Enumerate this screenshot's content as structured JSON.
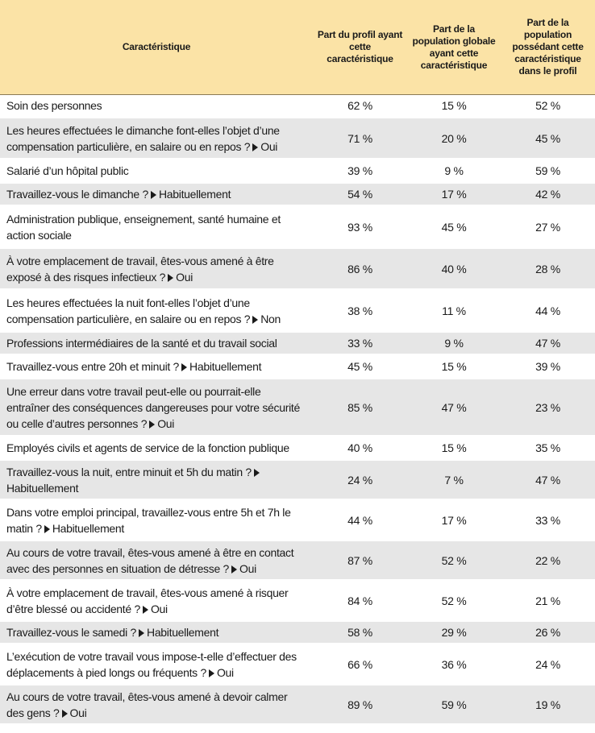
{
  "header": {
    "col0": "Caractéristique",
    "col1": "Part du profil ayant cette caractéristique",
    "col2": "Part de la population globale ayant cette caractéristique",
    "col3": "Part de la population possédant cette caractéristique dans le profil"
  },
  "rows": [
    {
      "q": "Soin des personnes",
      "a": "",
      "v1": "62 %",
      "v2": "15 %",
      "v3": "52 %"
    },
    {
      "q": "Les heures effectuées le dimanche font-elles l’objet d’une compensation particulière, en salaire ou en repos ?",
      "a": "Oui",
      "v1": "71 %",
      "v2": "20 %",
      "v3": "45 %"
    },
    {
      "q": "Salarié d’un hôpital public",
      "a": "",
      "v1": "39 %",
      "v2": "9 %",
      "v3": "59 %"
    },
    {
      "q": "Travaillez-vous le dimanche ?",
      "a": "Habituellement",
      "v1": "54 %",
      "v2": "17 %",
      "v3": "42 %"
    },
    {
      "q": "Administration publique, enseignement, santé humaine et action sociale",
      "a": "",
      "v1": "93 %",
      "v2": "45 %",
      "v3": "27 %"
    },
    {
      "q": "À votre emplacement de travail, êtes-vous amené à être exposé à des risques infectieux ?",
      "a": "Oui",
      "v1": "86 %",
      "v2": "40 %",
      "v3": "28 %"
    },
    {
      "q": "Les heures effectuées la nuit font-elles l’objet d’une compensation particulière, en salaire ou en repos ?",
      "a": "Non",
      "v1": "38 %",
      "v2": "11 %",
      "v3": "44 %"
    },
    {
      "q": "Professions intermédiaires de la santé et du travail social",
      "a": "",
      "v1": "33 %",
      "v2": "9 %",
      "v3": "47 %"
    },
    {
      "q": "Travaillez-vous entre 20h et minuit ?",
      "a": "Habituellement",
      "v1": "45 %",
      "v2": "15 %",
      "v3": "39 %"
    },
    {
      "q": "Une erreur dans votre travail peut-elle ou pourrait-elle entraîner des conséquences dangereuses pour votre sécurité ou celle d’autres personnes ?",
      "a": "Oui",
      "v1": "85 %",
      "v2": "47 %",
      "v3": "23 %"
    },
    {
      "q": "Employés civils et agents de service de la fonction publique",
      "a": "",
      "v1": "40 %",
      "v2": "15 %",
      "v3": "35 %"
    },
    {
      "q": "Travaillez-vous la nuit, entre minuit et 5h du matin ?",
      "a": "Habituellement",
      "v1": "24 %",
      "v2": "7 %",
      "v3": "47 %"
    },
    {
      "q": "Dans votre emploi principal, travaillez-vous entre 5h et 7h le matin ?",
      "a": "Habituellement",
      "v1": "44 %",
      "v2": "17 %",
      "v3": "33 %"
    },
    {
      "q": "Au cours de votre travail, êtes-vous amené à être en contact avec des personnes en situation de détresse ?",
      "a": "Oui",
      "v1": "87 %",
      "v2": "52 %",
      "v3": "22 %"
    },
    {
      "q": "À votre emplacement de travail, êtes-vous amené à risquer d’être blessé ou accidenté ?",
      "a": "Oui",
      "v1": "84 %",
      "v2": "52 %",
      "v3": "21 %"
    },
    {
      "q": "Travaillez-vous le samedi ?",
      "a": "Habituellement",
      "v1": "58 %",
      "v2": "29 %",
      "v3": "26 %"
    },
    {
      "q": "L’exécution de votre travail vous impose-t-elle d’effectuer des déplacements à pied longs ou fréquents ?",
      "a": "Oui",
      "v1": "66 %",
      "v2": "36 %",
      "v3": "24 %"
    },
    {
      "q": "Au cours de votre travail, êtes-vous amené à devoir calmer des gens ?",
      "a": "Oui",
      "v1": "89 %",
      "v2": "59 %",
      "v3": "19 %"
    }
  ]
}
